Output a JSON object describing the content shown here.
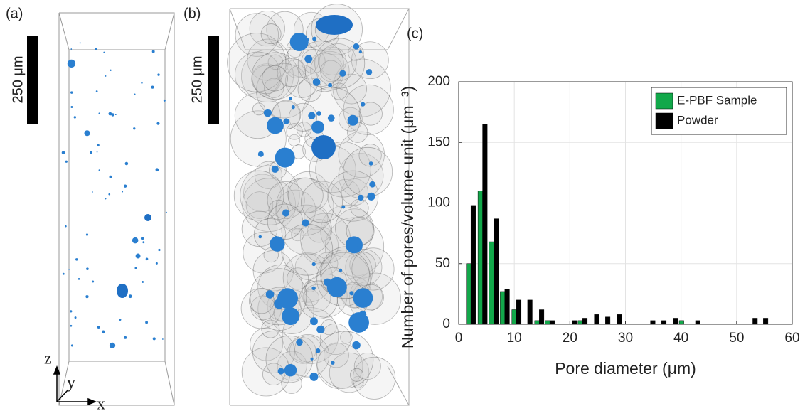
{
  "panels": {
    "a": {
      "label": "(a)",
      "scale_bar": "250 μm"
    },
    "b": {
      "label": "(b)",
      "scale_bar": "250 μm"
    }
  },
  "axes_triad": {
    "z": "z",
    "y": "y",
    "x": "x"
  },
  "chart_data": {
    "type": "bar",
    "label": "(c)",
    "xlabel": "Pore diameter (μm)",
    "ylabel": "Number of pores/volume unit (μm⁻³)",
    "x": [
      2.2,
      4.3,
      6.3,
      8.3,
      10.4,
      12.4,
      14.5,
      16.4,
      20.4,
      22.3,
      24.4,
      26.4,
      28.5,
      34.5,
      36.5,
      38.6,
      40.5,
      42.6,
      52.9,
      54.8
    ],
    "series": [
      {
        "name": "E-PBF Sample",
        "color": "#12a84a",
        "values": [
          50,
          110,
          68,
          27,
          12,
          0,
          3,
          3,
          0,
          3,
          0,
          0,
          0,
          0,
          0,
          0,
          3,
          0,
          0,
          0
        ]
      },
      {
        "name": "Powder",
        "color": "#000000",
        "values": [
          98,
          165,
          87,
          29,
          20,
          20,
          12,
          3,
          3,
          5,
          8,
          6,
          8,
          3,
          3,
          5,
          0,
          3,
          5,
          5
        ]
      }
    ],
    "xlim": [
      0,
      60
    ],
    "xticks": [
      0,
      10,
      20,
      30,
      40,
      50,
      60
    ],
    "ylim": [
      0,
      200
    ],
    "yticks": [
      0,
      50,
      100,
      150,
      200
    ],
    "grid": true,
    "legend": "top-right"
  }
}
